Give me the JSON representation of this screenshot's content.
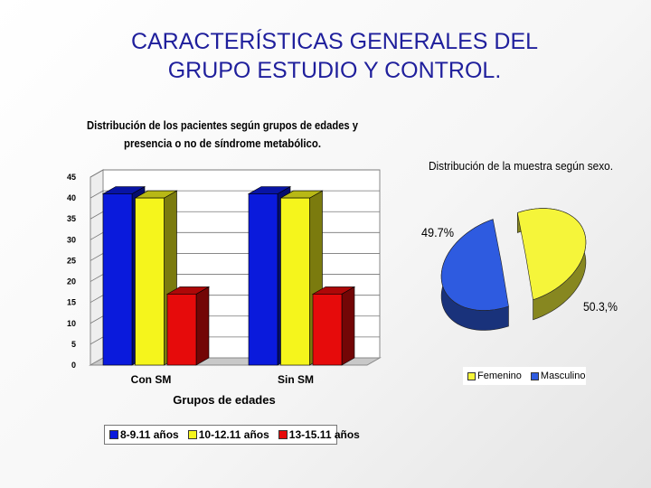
{
  "title": {
    "line1": "CARACTERÍSTICAS GENERALES DEL",
    "line2": "GRUPO ESTUDIO Y CONTROL."
  },
  "chart_data": [
    {
      "type": "bar",
      "title_line1": "Distribución de los pacientes según grupos de edades y",
      "title_line2": "presencia o no de síndrome metabólico.",
      "xlabel": "Grupos de edades",
      "ylabel": "",
      "categories": [
        "Con SM",
        "Sin SM"
      ],
      "series": [
        {
          "name": "8-9.11 años",
          "values": [
            41,
            41
          ],
          "color": "#0a1adc"
        },
        {
          "name": "10-12.11 años",
          "values": [
            40,
            40
          ],
          "color": "#f5f51c"
        },
        {
          "name": "13-15.11 años",
          "values": [
            17,
            17
          ],
          "color": "#e60b0b"
        }
      ],
      "ylim": [
        0,
        45
      ],
      "yticks": [
        "0",
        "5",
        "10",
        "15",
        "20",
        "25",
        "30",
        "35",
        "40",
        "45"
      ],
      "grid": true,
      "legend_position": "bottom"
    },
    {
      "type": "pie",
      "title": "Distribución de la muestra según sexo.",
      "slices": [
        {
          "name": "Femenino",
          "value": 50.3,
          "label": "50.3,%",
          "color": "#f5f53a"
        },
        {
          "name": "Masculino",
          "value": 49.7,
          "label": "49.7%",
          "color": "#2e5be0"
        }
      ],
      "legend_position": "bottom-right"
    }
  ]
}
